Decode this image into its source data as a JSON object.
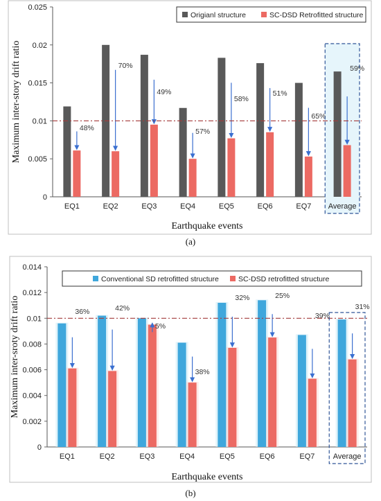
{
  "chart_data": [
    {
      "type": "bar",
      "panel_label": "(a)",
      "xlabel": "Earthquake events",
      "ylabel": "Maximum inter-story drift ratio",
      "ylim": [
        0,
        0.025
      ],
      "yticks": [
        "0",
        "0.005",
        "0.01",
        "0.015",
        "0.02",
        "0.025"
      ],
      "categories": [
        "EQ1",
        "EQ2",
        "EQ3",
        "EQ4",
        "EQ5",
        "EQ6",
        "EQ7",
        "Average"
      ],
      "series": [
        {
          "name": "Origianl structure",
          "color": "#595959",
          "values": [
            0.0119,
            0.02,
            0.0187,
            0.0117,
            0.0183,
            0.0176,
            0.015,
            0.0165
          ]
        },
        {
          "name": "SC-DSD Retrofitted structure",
          "color": "#ec6a63",
          "values": [
            0.0061,
            0.006,
            0.0095,
            0.005,
            0.0077,
            0.0085,
            0.0053,
            0.0068
          ]
        }
      ],
      "reductions": [
        "48%",
        "70%",
        "49%",
        "57%",
        "58%",
        "51%",
        "65%",
        "59%"
      ],
      "threshold": 0.01,
      "legend_position": "top-right",
      "grid": false
    },
    {
      "type": "bar",
      "panel_label": "(b)",
      "xlabel": "Earthquake events",
      "ylabel": "Maximum inter-sroty drift ratio",
      "ylim": [
        0,
        0.014
      ],
      "yticks": [
        "0",
        "0.002",
        "0.004",
        "0.006",
        "0.008",
        "0.01",
        "0.012",
        "0.014"
      ],
      "categories": [
        "EQ1",
        "EQ2",
        "EQ3",
        "EQ4",
        "EQ5",
        "EQ6",
        "EQ7",
        "Average"
      ],
      "series": [
        {
          "name": "Conventional SD retrofitted  structure",
          "color": "#3fa7dc",
          "values": [
            0.0096,
            0.0102,
            0.01,
            0.0081,
            0.0112,
            0.0114,
            0.0087,
            0.0099
          ]
        },
        {
          "name": "SC-DSD retrofitted structure",
          "color": "#ec6a63",
          "values": [
            0.0061,
            0.0059,
            0.0095,
            0.005,
            0.0077,
            0.0085,
            0.0053,
            0.0068
          ]
        }
      ],
      "reductions": [
        "36%",
        "42%",
        "5%",
        "38%",
        "32%",
        "25%",
        "39%",
        "31%"
      ],
      "threshold": 0.01,
      "legend_position": "top",
      "grid": false
    }
  ]
}
